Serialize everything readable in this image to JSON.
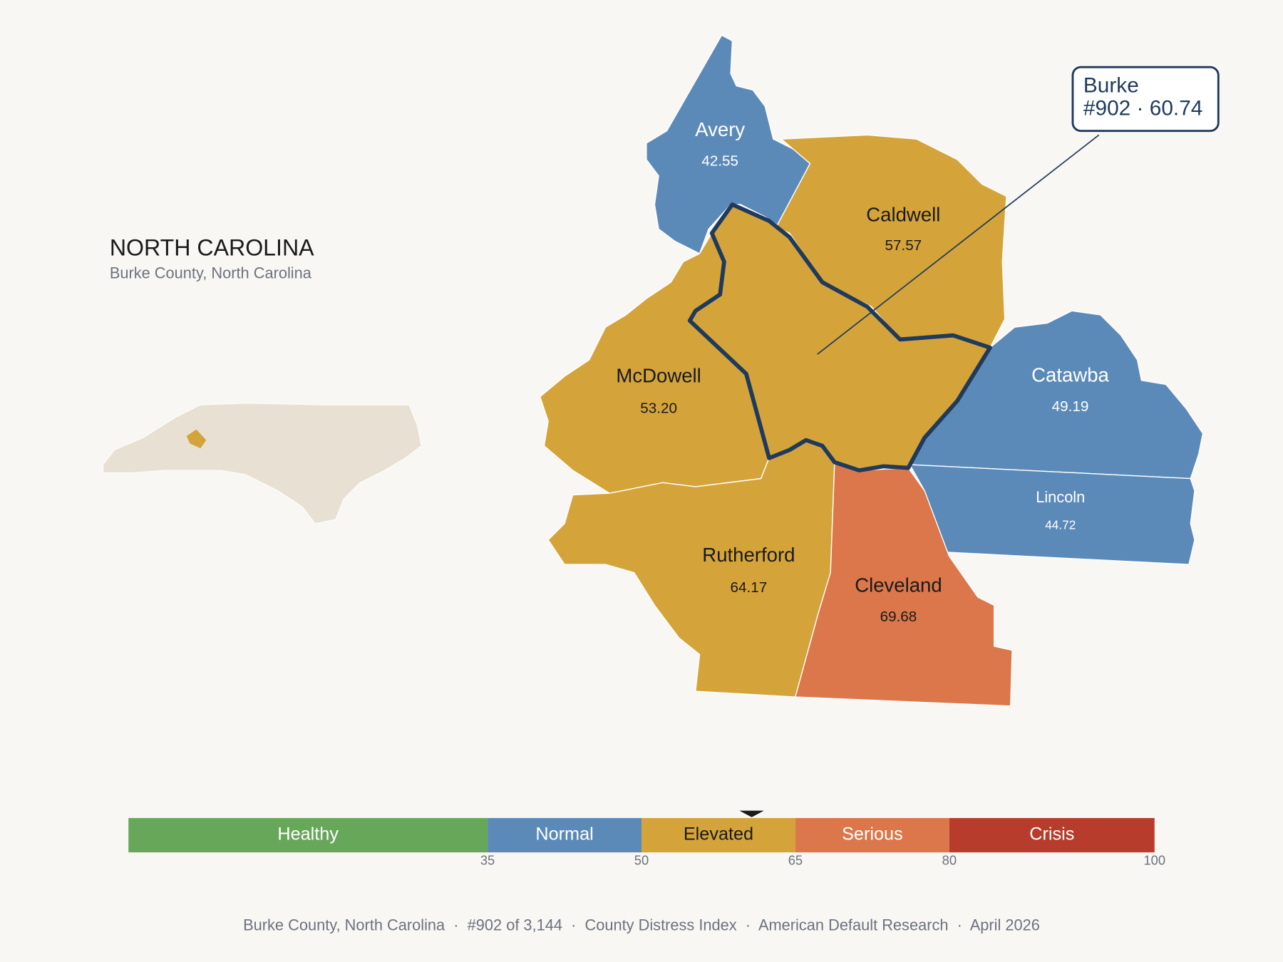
{
  "header": {
    "title": "NORTH CAROLINA",
    "subtitle": "Burke County, North Carolina"
  },
  "counties": [
    {
      "name": "Avery",
      "value": "42.55",
      "color": "#5b8ab9"
    },
    {
      "name": "Caldwell",
      "value": "57.57",
      "color": "#d4a43a"
    },
    {
      "name": "McDowell",
      "value": "53.20",
      "color": "#d4a43a"
    },
    {
      "name": "Catawba",
      "value": "49.19",
      "color": "#5b8ab9"
    },
    {
      "name": "Lincoln",
      "value": "44.72",
      "color": "#5b8ab9"
    },
    {
      "name": "Rutherford",
      "value": "64.17",
      "color": "#d4a43a"
    },
    {
      "name": "Cleveland",
      "value": "69.68",
      "color": "#db774a"
    },
    {
      "color": "#d4a43a"
    }
  ],
  "callout": {
    "line1": "Burke",
    "line2": "#902 · 60.74"
  },
  "scale": {
    "range": [
      0,
      100
    ],
    "ticks": [
      35,
      50,
      65,
      80,
      100
    ],
    "marker": 60.74,
    "bands": [
      {
        "label": "Healthy",
        "color": "#67a75a"
      },
      {
        "label": "Normal",
        "color": "#5b8ab9"
      },
      {
        "label": "Elevated",
        "color": "#d4a43a"
      },
      {
        "label": "Serious",
        "color": "#db774a"
      },
      {
        "label": "Crisis",
        "color": "#b83c2c"
      }
    ]
  },
  "footer": "Burke County, North Carolina  ·  #902 of 3,144  ·  County Distress Index  ·  American Default Research  ·  April 2026"
}
